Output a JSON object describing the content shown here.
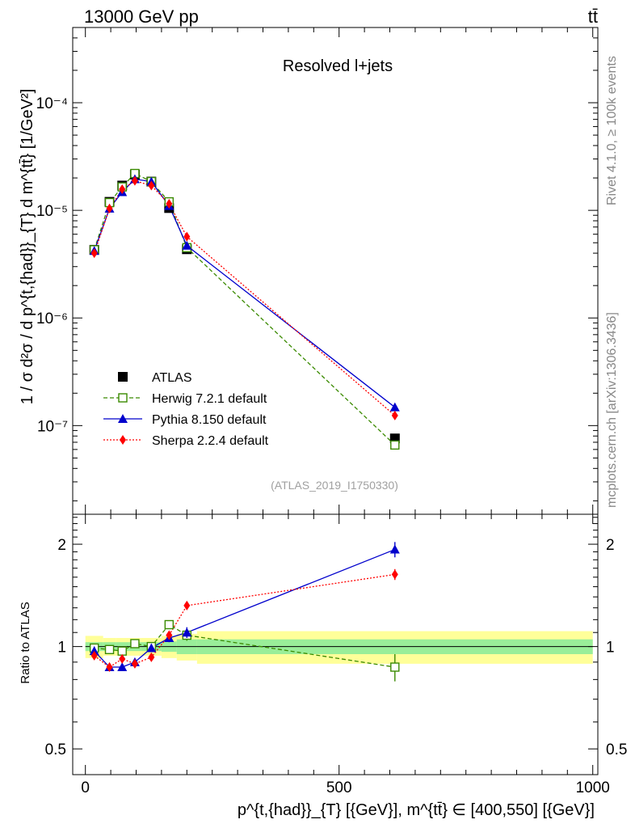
{
  "header": {
    "left_label": "13000 GeV pp",
    "right_label": "tt̄"
  },
  "side": {
    "rivet_label": "Rivet 4.1.0, ≥ 100k events",
    "mcplots_label": "mcplots.cern.ch [arXiv:1306.3436]"
  },
  "colors": {
    "atlas": "#000000",
    "herwig": "#3a8a00",
    "pythia": "#0000cc",
    "sherpa": "#ff0000",
    "band_inner": "#99ee99",
    "band_outer": "#ffff99"
  },
  "chart_data": [
    {
      "type": "scatter",
      "panel": "main",
      "title": "Resolved l+jets",
      "watermark": "(ATLAS_2019_I1750330)",
      "ylabel": "1 / σ d²σ / d p^{t,{had}}_{T} d m^{tt̄} [1/GeV²]",
      "yscale": "log",
      "ylim": [
        1.5e-08,
        0.0005
      ],
      "xlim": [
        -25,
        1010
      ],
      "ytick_labels": [
        "10⁻⁷",
        "10⁻⁶",
        "10⁻⁵",
        "10⁻⁴"
      ],
      "ytick_values": [
        1e-07,
        1e-06,
        1e-05,
        0.0001
      ],
      "legend": [
        "ATLAS",
        "Herwig 7.2.1 default",
        "Pythia 8.150 default",
        "Sherpa 2.2.4 default"
      ],
      "series": [
        {
          "name": "ATLAS",
          "style": "square-filled",
          "x": [
            17.5,
            47.5,
            72.5,
            97.5,
            130,
            165,
            200,
            610
          ],
          "y": [
            4.3e-06,
            1.2e-05,
            1.7e-05,
            2.15e-05,
            1.85e-05,
            1.05e-05,
            4.35e-06,
            7.6e-08
          ]
        },
        {
          "name": "Herwig 7.2.1 default",
          "style": "square-open-dashed",
          "x": [
            17.5,
            47.5,
            72.5,
            97.5,
            130,
            165,
            200,
            610
          ],
          "y": [
            4.3e-06,
            1.18e-05,
            1.65e-05,
            2.2e-05,
            1.85e-05,
            1.2e-05,
            4.5e-06,
            6.6e-08
          ]
        },
        {
          "name": "Pythia 8.150 default",
          "style": "triangle-solid",
          "x": [
            17.5,
            47.5,
            72.5,
            97.5,
            130,
            165,
            200,
            610
          ],
          "y": [
            4.2e-06,
            1.04e-05,
            1.48e-05,
            1.95e-05,
            1.85e-05,
            1.1e-05,
            4.7e-06,
            1.48e-07
          ]
        },
        {
          "name": "Sherpa 2.2.4 default",
          "style": "diamond-dotted",
          "x": [
            17.5,
            47.5,
            72.5,
            97.5,
            130,
            165,
            200,
            610
          ],
          "y": [
            4e-06,
            1.04e-05,
            1.57e-05,
            1.88e-05,
            1.7e-05,
            1.15e-05,
            5.7e-06,
            1.24e-07
          ]
        }
      ]
    },
    {
      "type": "scatter",
      "panel": "ratio",
      "ylabel": "Ratio to ATLAS",
      "xlabel": "p^{t,{had}}_{T} [{GeV}], m^{tt̄} ∈ [400,550] [{GeV}]",
      "yscale": "log",
      "ylim": [
        0.42,
        2.45
      ],
      "xlim": [
        -25,
        1010
      ],
      "ytick_labels": [
        "0.5",
        "1",
        "2"
      ],
      "ytick_values": [
        0.5,
        1,
        2
      ],
      "xtick_labels": [
        "0",
        "500",
        "1000"
      ],
      "xtick_values": [
        0,
        500,
        1000
      ],
      "bands": [
        {
          "x0": 0,
          "x1": 35,
          "inner": 0.03,
          "outer": 0.075
        },
        {
          "x0": 35,
          "x1": 60,
          "inner": 0.03,
          "outer": 0.06
        },
        {
          "x0": 60,
          "x1": 85,
          "inner": 0.03,
          "outer": 0.06
        },
        {
          "x0": 85,
          "x1": 110,
          "inner": 0.03,
          "outer": 0.06
        },
        {
          "x0": 110,
          "x1": 150,
          "inner": 0.03,
          "outer": 0.06
        },
        {
          "x0": 150,
          "x1": 180,
          "inner": 0.035,
          "outer": 0.075
        },
        {
          "x0": 180,
          "x1": 220,
          "inner": 0.05,
          "outer": 0.09
        },
        {
          "x0": 220,
          "x1": 1000,
          "inner": 0.05,
          "outer": 0.11
        }
      ],
      "series": [
        {
          "name": "ATLAS",
          "x": [
            17.5,
            47.5,
            72.5,
            97.5,
            130,
            165,
            200,
            610
          ],
          "y": [
            1,
            1,
            1,
            1,
            1,
            1,
            1,
            1
          ]
        },
        {
          "name": "Herwig 7.2.1 default",
          "x": [
            17.5,
            47.5,
            72.5,
            97.5,
            130,
            165,
            200,
            610
          ],
          "y": [
            0.99,
            0.98,
            0.97,
            1.02,
            1.0,
            1.16,
            1.08,
            0.87
          ],
          "err": [
            0.03,
            0.02,
            0.02,
            0.02,
            0.02,
            0.03,
            0.04,
            0.08
          ]
        },
        {
          "name": "Pythia 8.150 default",
          "x": [
            17.5,
            47.5,
            72.5,
            97.5,
            130,
            165,
            200,
            610
          ],
          "y": [
            0.97,
            0.87,
            0.87,
            0.9,
            0.99,
            1.06,
            1.1,
            1.93
          ],
          "err": [
            0.03,
            0.02,
            0.02,
            0.02,
            0.02,
            0.03,
            0.04,
            0.1
          ]
        },
        {
          "name": "Sherpa 2.2.4 default",
          "x": [
            17.5,
            47.5,
            72.5,
            97.5,
            130,
            165,
            200,
            610
          ],
          "y": [
            0.94,
            0.87,
            0.92,
            0.89,
            0.93,
            1.08,
            1.32,
            1.63
          ],
          "err": [
            0.02,
            0.02,
            0.02,
            0.02,
            0.02,
            0.03,
            0.03,
            0.06
          ]
        }
      ]
    }
  ]
}
